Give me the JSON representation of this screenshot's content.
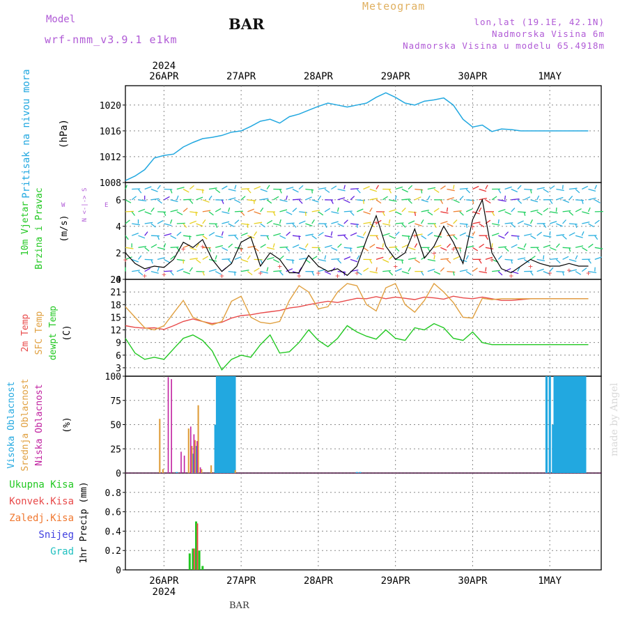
{
  "header": {
    "model_label": "Model",
    "model_name": "wrf-nmm_v3.9.1  e1km",
    "station": "BAR",
    "meteogram_label": "Meteogram",
    "lonlat": "lon,lat (19.1E, 42.1N)",
    "elevation": "Nadmorska Visina 6m",
    "model_elevation": "Nadmorska Visina u modelu 65.4918m",
    "made_by": "made by Angel"
  },
  "time_axis": {
    "year": "2024",
    "labels": [
      "26APR",
      "27APR",
      "28APR",
      "29APR",
      "30APR",
      "1MAY"
    ]
  },
  "colors": {
    "pressure": "#22a8e0",
    "temp2m": "#e84a4a",
    "sfc_temp": "#e0a040",
    "dewpt": "#22c822",
    "visoka": "#22a8e0",
    "srednja": "#e0a040",
    "niska": "#c020a0",
    "ukupna": "#22c822",
    "konvek": "#e84a4a",
    "zaledj": "#f07830",
    "snijeg": "#4040e0",
    "grad": "#20c0c0"
  },
  "chart_data": [
    {
      "type": "line",
      "panel": "pressure",
      "ylabel": "Pritisak na nivou mora",
      "unit": "(hPa)",
      "ylim": [
        1008,
        1023
      ],
      "yticks": [
        1008,
        1012,
        1016,
        1020
      ],
      "x_hours": [
        0,
        3,
        6,
        9,
        12,
        15,
        18,
        21,
        24,
        27,
        30,
        33,
        36,
        39,
        42,
        45,
        48,
        51,
        54,
        57,
        60,
        63,
        66,
        69,
        72,
        75,
        78,
        81,
        84,
        87,
        90,
        93,
        96,
        99,
        102,
        105,
        108,
        111,
        114,
        117,
        120,
        123,
        126,
        129,
        132,
        135,
        138,
        141,
        144
      ],
      "values": [
        1008.3,
        1009.0,
        1010.0,
        1011.8,
        1012.2,
        1012.4,
        1013.5,
        1014.2,
        1014.8,
        1015.0,
        1015.3,
        1015.8,
        1016.0,
        1016.7,
        1017.5,
        1017.8,
        1017.2,
        1018.2,
        1018.6,
        1019.2,
        1019.8,
        1020.3,
        1020.0,
        1019.7,
        1020.0,
        1020.3,
        1021.2,
        1021.9,
        1021.2,
        1020.3,
        1020.0,
        1020.6,
        1020.8,
        1021.1,
        1020.0,
        1017.8,
        1016.6,
        1016.9,
        1015.9,
        1016.3,
        1016.2,
        1016.0,
        1016.0,
        1016.0,
        1016.0,
        1016.0,
        1016.0,
        1016.0,
        1016.0
      ]
    },
    {
      "type": "line",
      "panel": "wind",
      "ylabel_1": "10m Vjetar",
      "ylabel_2": "Brzina i Pravac",
      "unit": "(m/s)",
      "compass_ns": "N <-|-> S",
      "compass_w": "W",
      "compass_e": "E",
      "ylim": [
        0,
        7.3
      ],
      "yticks": [
        0,
        2,
        4,
        6
      ],
      "x_hours": [
        0,
        3,
        6,
        9,
        12,
        15,
        18,
        21,
        24,
        27,
        30,
        33,
        36,
        39,
        42,
        45,
        48,
        51,
        54,
        57,
        60,
        63,
        66,
        69,
        72,
        75,
        78,
        81,
        84,
        87,
        90,
        93,
        96,
        99,
        102,
        105,
        108,
        111,
        114,
        117,
        120,
        123,
        126,
        129,
        132,
        135,
        138,
        141,
        144
      ],
      "speed": [
        2.0,
        1.2,
        0.8,
        1.0,
        0.9,
        1.5,
        2.8,
        2.4,
        3.0,
        1.5,
        0.6,
        1.2,
        2.8,
        3.2,
        1.0,
        2.0,
        1.5,
        0.5,
        0.5,
        1.8,
        1.0,
        0.6,
        0.8,
        0.3,
        1.0,
        3.0,
        4.8,
        2.5,
        1.5,
        2.0,
        3.8,
        1.6,
        2.5,
        4.0,
        2.8,
        1.2,
        4.5,
        6.0,
        2.0,
        0.8,
        0.5,
        1.0,
        1.5,
        1.2,
        1.0,
        1.0,
        1.2,
        1.0,
        1.0
      ]
    },
    {
      "type": "line",
      "panel": "temperature",
      "ylabel_1": "2m Temp",
      "ylabel_2": "SFC Temp",
      "ylabel_3": "dewpt Temp",
      "unit": "(C)",
      "ylim": [
        1,
        24
      ],
      "yticks": [
        3,
        6,
        9,
        12,
        15,
        18,
        21,
        24
      ],
      "x_hours": [
        0,
        3,
        6,
        9,
        12,
        15,
        18,
        21,
        24,
        27,
        30,
        33,
        36,
        39,
        42,
        45,
        48,
        51,
        54,
        57,
        60,
        63,
        66,
        69,
        72,
        75,
        78,
        81,
        84,
        87,
        90,
        93,
        96,
        99,
        102,
        105,
        108,
        111,
        114,
        117,
        120,
        123,
        126,
        129,
        132,
        135,
        138,
        141,
        144
      ],
      "series": [
        {
          "name": "2m Temp",
          "values": [
            13.0,
            12.6,
            12.4,
            12.5,
            12.1,
            13.0,
            14.0,
            14.6,
            14.0,
            13.5,
            13.8,
            14.8,
            15.4,
            15.6,
            16.0,
            16.3,
            16.6,
            17.2,
            17.5,
            18.0,
            18.4,
            18.8,
            18.5,
            19.0,
            19.5,
            19.4,
            19.9,
            19.4,
            19.8,
            19.5,
            19.2,
            19.8,
            19.6,
            19.3,
            20.0,
            19.6,
            19.4,
            19.8,
            19.4,
            19.0,
            19.0,
            19.2,
            19.4,
            19.4,
            19.4,
            19.4,
            19.4,
            19.4,
            19.4
          ]
        },
        {
          "name": "SFC Temp",
          "values": [
            17.5,
            15.0,
            12.5,
            12.0,
            13.0,
            16.0,
            19.0,
            15.0,
            14.0,
            13.2,
            14.0,
            18.8,
            20.0,
            15.0,
            13.8,
            13.5,
            14.0,
            19.0,
            22.5,
            21.0,
            17.0,
            17.5,
            21.0,
            23.0,
            22.5,
            18.0,
            16.5,
            22.0,
            23.0,
            18.0,
            16.2,
            19.0,
            23.0,
            21.0,
            18.5,
            15.0,
            14.8,
            19.5,
            19.2,
            19.4,
            19.4,
            19.4,
            19.4,
            19.4,
            19.4,
            19.4,
            19.4,
            19.4,
            19.4
          ]
        },
        {
          "name": "dewpt Temp",
          "values": [
            10.0,
            6.5,
            5.0,
            5.5,
            5.0,
            7.5,
            10.0,
            10.8,
            9.5,
            7.0,
            2.5,
            5.0,
            6.0,
            5.5,
            8.5,
            10.8,
            6.5,
            6.8,
            9.0,
            12.0,
            9.5,
            8.0,
            10.0,
            13.0,
            11.5,
            10.5,
            9.8,
            12.0,
            10.0,
            9.5,
            12.5,
            12.0,
            13.5,
            12.5,
            10.0,
            9.5,
            11.5,
            9.0,
            8.5,
            8.5,
            8.5,
            8.5,
            8.5,
            8.5,
            8.5,
            8.5,
            8.5,
            8.5,
            8.5
          ]
        }
      ]
    },
    {
      "type": "bar",
      "panel": "clouds",
      "ylabel_1": "Visoka Oblacnost",
      "ylabel_2": "Srednja Oblacnost",
      "ylabel_3": "Niska Oblacnost",
      "unit": "(%)",
      "ylim": [
        0,
        100
      ],
      "yticks": [
        0,
        25,
        50,
        75,
        100
      ],
      "series": [
        {
          "name": "Visoka Oblacnost",
          "x_hours": [
            12,
            13,
            14,
            15,
            16,
            20,
            21,
            22,
            23,
            24,
            27,
            28,
            28.5,
            29,
            29.5,
            30,
            30.5,
            31,
            31.5,
            32,
            32.5,
            33,
            33.5,
            34,
            72,
            73,
            131,
            132,
            132.5,
            133,
            133.5,
            134,
            134.5,
            135,
            135.5,
            136,
            136.5,
            137,
            137.5,
            138,
            138.5,
            139,
            139.5,
            140,
            140.5,
            141,
            141.5,
            142,
            142.5,
            143
          ],
          "values": [
            0,
            0,
            0,
            0,
            1,
            0,
            20,
            28,
            0,
            0,
            0,
            50,
            100,
            100,
            100,
            100,
            100,
            100,
            100,
            100,
            100,
            100,
            100,
            100,
            1,
            1,
            100,
            100,
            0,
            50,
            100,
            100,
            100,
            100,
            100,
            100,
            100,
            100,
            100,
            100,
            100,
            100,
            100,
            100,
            100,
            100,
            100,
            100,
            100,
            100
          ]
        },
        {
          "name": "Srednja Oblacnost",
          "x_hours": [
            11,
            12,
            13,
            17,
            18,
            20,
            20.5,
            21,
            22,
            23,
            24,
            25,
            26,
            27,
            34.5
          ],
          "values": [
            56,
            4,
            0,
            0,
            0,
            46,
            0,
            28,
            34,
            70,
            4,
            0,
            0,
            8,
            3
          ]
        },
        {
          "name": "Niska Oblacnost",
          "x_hours": [
            12,
            13,
            14,
            17,
            18,
            20,
            21,
            22,
            23
          ],
          "values": [
            0,
            99,
            97,
            22,
            18,
            48,
            40,
            33,
            6
          ]
        }
      ]
    },
    {
      "type": "bar",
      "panel": "precipitation",
      "legend": [
        "Ukupna Kisa",
        "Konvek.Kisa",
        "Zaledj.Kisa",
        "Snijeg",
        "Grad"
      ],
      "ylabel": "1hr Precip (mm)",
      "ylim": [
        0,
        1.0
      ],
      "yticks": [
        0,
        0.2,
        0.4,
        0.6,
        0.8
      ],
      "series": [
        {
          "name": "Ukupna Kisa",
          "x_hours": [
            20,
            21,
            22,
            23,
            24
          ],
          "values": [
            0.17,
            0.22,
            0.5,
            0.2,
            0.04
          ]
        },
        {
          "name": "Konvek.Kisa",
          "x_hours": [
            21.4,
            22.4
          ],
          "values": [
            0.22,
            0.48
          ]
        }
      ]
    }
  ]
}
